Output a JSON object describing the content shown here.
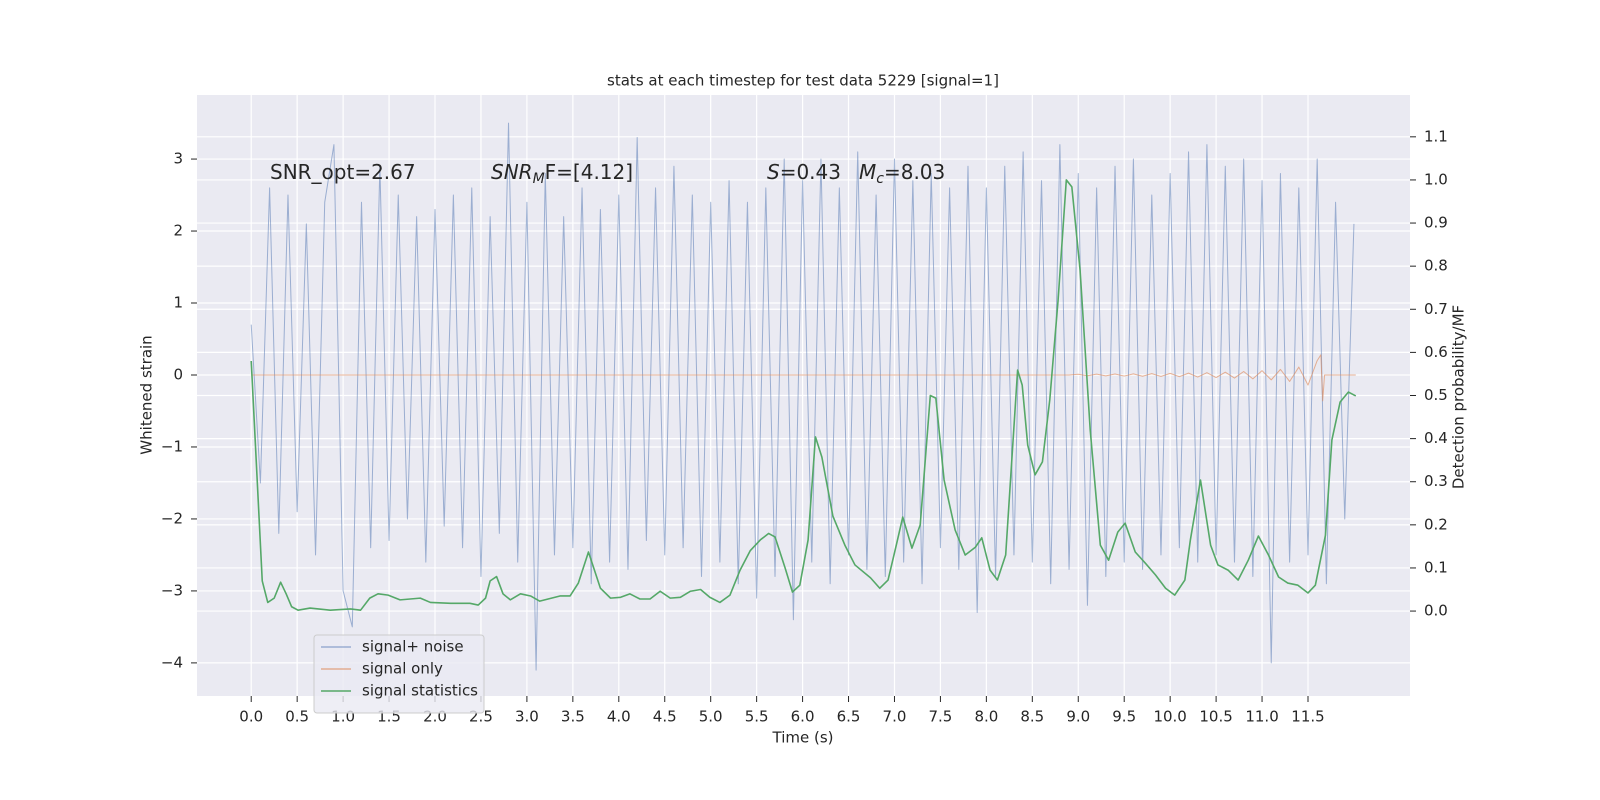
{
  "chart_data": {
    "type": "line",
    "title": "stats at each timestep for test data 5229 [signal=1]",
    "xlabel": "Time (s)",
    "ylabel": "Whitened strain",
    "y2label": "Detection probability/MF",
    "grid": true,
    "legend_position": "lower left",
    "xlim": [
      -0.59,
      12.61
    ],
    "ylim": [
      -4.46,
      3.89
    ],
    "y2lim": [
      -0.197,
      1.197
    ],
    "xticks": [
      {
        "value": 0,
        "label": "0.0"
      },
      0.5,
      {
        "value": 1,
        "label": "1.0"
      },
      1.5,
      {
        "value": 2,
        "label": "2.0"
      },
      2.5,
      {
        "value": 3,
        "label": "3.0"
      },
      3.5,
      {
        "value": 4,
        "label": "4.0"
      },
      4.5,
      {
        "value": 5,
        "label": "5.0"
      },
      5.5,
      {
        "value": 6,
        "label": "6.0"
      },
      6.5,
      {
        "value": 7,
        "label": "7.0"
      },
      7.5,
      {
        "value": 8,
        "label": "8.0"
      },
      8.5,
      {
        "value": 9,
        "label": "9.0"
      },
      9.5,
      {
        "value": 10,
        "label": "10.0"
      },
      10.5,
      {
        "value": 11,
        "label": "11.0"
      },
      11.5
    ],
    "yticks": [
      {
        "value": -4,
        "label": "−4"
      },
      {
        "value": -3,
        "label": "−3"
      },
      {
        "value": -2,
        "label": "−2"
      },
      {
        "value": -1,
        "label": "−1"
      },
      0,
      1,
      2,
      3
    ],
    "y2ticks": [
      {
        "value": 0,
        "label": "0.0"
      },
      0.1,
      0.2,
      0.3,
      0.4,
      0.5,
      0.6,
      0.7,
      0.8,
      0.9,
      {
        "value": 1,
        "label": "1.0"
      },
      1.1
    ],
    "annotations": [
      {
        "main": "SNR_opt=2.67"
      },
      {
        "main": "SNR",
        "sub": "M",
        "after": "F=[4.12]"
      },
      {
        "main": "S",
        "after": "=0.43"
      },
      {
        "main": "M",
        "sub": "c",
        "after": "=8.03"
      }
    ],
    "series": [
      {
        "name": "signal+ noise",
        "color": "#4c72b0",
        "axis": "y",
        "x": [
          0,
          0.1,
          0.2,
          0.3,
          0.4,
          0.5,
          0.6,
          0.7,
          0.8,
          0.9,
          1,
          1.1,
          1.2,
          1.3,
          1.4,
          1.5,
          1.6,
          1.7,
          1.8,
          1.9,
          2,
          2.1,
          2.2,
          2.3,
          2.4,
          2.5,
          2.6,
          2.7,
          2.8,
          2.9,
          3,
          3.1,
          3.2,
          3.3,
          3.4,
          3.5,
          3.6,
          3.7,
          3.8,
          3.9,
          4,
          4.1,
          4.2,
          4.3,
          4.4,
          4.5,
          4.6,
          4.7,
          4.8,
          4.9,
          5,
          5.1,
          5.2,
          5.3,
          5.4,
          5.5,
          5.6,
          5.7,
          5.8,
          5.9,
          6,
          6.1,
          6.2,
          6.3,
          6.4,
          6.5,
          6.6,
          6.7,
          6.8,
          6.9,
          7,
          7.1,
          7.2,
          7.3,
          7.4,
          7.5,
          7.6,
          7.7,
          7.8,
          7.9,
          8,
          8.1,
          8.2,
          8.3,
          8.4,
          8.5,
          8.6,
          8.7,
          8.8,
          8.9,
          9,
          9.1,
          9.2,
          9.3,
          9.4,
          9.5,
          9.6,
          9.7,
          9.8,
          9.9,
          10,
          10.1,
          10.2,
          10.3,
          10.4,
          10.5,
          10.6,
          10.7,
          10.8,
          10.9,
          11,
          11.1,
          11.2,
          11.3,
          11.4,
          11.5,
          11.6,
          11.7,
          11.8,
          11.9,
          12
        ],
        "values": [
          0.7,
          -1.5,
          2.6,
          -2.2,
          2.5,
          -1.9,
          2.1,
          -2.5,
          2.4,
          3.2,
          -3.0,
          -3.5,
          2.4,
          -2.4,
          2.9,
          -2.3,
          2.5,
          -2.0,
          2.2,
          -2.6,
          2.3,
          -2.1,
          2.5,
          -2.4,
          2.6,
          -2.8,
          2.2,
          -2.2,
          3.5,
          -2.6,
          2.4,
          -4.1,
          2.8,
          -2.5,
          2.2,
          -2.4,
          2.6,
          -2.9,
          2.3,
          -2.6,
          2.5,
          -2.7,
          3.3,
          -2.3,
          2.6,
          -2.5,
          2.9,
          -2.4,
          2.5,
          -2.8,
          2.4,
          -2.6,
          2.7,
          -2.9,
          2.4,
          -3.1,
          2.6,
          -2.8,
          3.0,
          -3.4,
          2.7,
          -2.6,
          3.0,
          -2.9,
          2.6,
          -2.5,
          3.1,
          -2.7,
          2.5,
          -2.8,
          3.0,
          -2.6,
          2.7,
          -2.9,
          2.8,
          -2.4,
          2.6,
          -2.7,
          2.9,
          -3.3,
          2.6,
          -2.8,
          2.9,
          -2.5,
          3.1,
          -2.6,
          2.7,
          -2.9,
          3.2,
          -2.7,
          2.8,
          -3.2,
          2.6,
          -2.8,
          2.9,
          -2.6,
          3.0,
          -2.7,
          2.5,
          -2.5,
          2.8,
          -2.4,
          3.1,
          -2.6,
          3.2,
          -2.5,
          2.9,
          -2.6,
          3.0,
          -2.8,
          2.7,
          -4.0,
          2.8,
          -2.6,
          2.6,
          -2.5,
          3.0,
          -2.9,
          2.4,
          -2.0,
          2.1
        ]
      },
      {
        "name": "signal only",
        "color": "#dd8452",
        "axis": "y",
        "x": [
          0,
          8.9,
          9,
          9.1,
          9.2,
          9.3,
          9.4,
          9.5,
          9.6,
          9.7,
          9.8,
          9.9,
          10,
          10.1,
          10.2,
          10.3,
          10.4,
          10.5,
          10.6,
          10.7,
          10.8,
          10.9,
          11,
          11.1,
          11.2,
          11.3,
          11.4,
          11.5,
          11.6,
          11.64,
          11.66,
          11.68,
          12.02
        ],
        "values": [
          0,
          0,
          0.01,
          -0.01,
          0.012,
          -0.012,
          0.014,
          -0.015,
          0.016,
          -0.017,
          0.019,
          -0.02,
          0.022,
          -0.024,
          0.026,
          -0.029,
          0.032,
          -0.035,
          0.039,
          -0.043,
          0.048,
          -0.054,
          0.06,
          -0.068,
          0.078,
          -0.09,
          0.11,
          -0.14,
          0.2,
          0.28,
          -0.36,
          0,
          0
        ]
      },
      {
        "name": "signal statistics",
        "color": "#55a868",
        "axis": "y2",
        "x": [
          0,
          0.12,
          0.18,
          0.25,
          0.32,
          0.38,
          0.44,
          0.51,
          0.64,
          0.86,
          1.08,
          1.19,
          1.29,
          1.38,
          1.49,
          1.62,
          1.84,
          1.95,
          2.17,
          2.38,
          2.47,
          2.55,
          2.6,
          2.67,
          2.74,
          2.82,
          2.93,
          3.04,
          3.14,
          3.36,
          3.47,
          3.56,
          3.67,
          3.8,
          3.91,
          4.02,
          4.12,
          4.23,
          4.34,
          4.45,
          4.56,
          4.67,
          4.78,
          4.89,
          4.99,
          5.1,
          5.21,
          5.32,
          5.43,
          5.54,
          5.63,
          5.7,
          5.81,
          5.89,
          5.97,
          6.06,
          6.14,
          6.21,
          6.33,
          6.46,
          6.57,
          6.74,
          6.84,
          6.93,
          7.02,
          7.09,
          7.19,
          7.28,
          7.39,
          7.45,
          7.54,
          7.66,
          7.77,
          7.88,
          7.95,
          8.04,
          8.12,
          8.21,
          8.34,
          8.39,
          8.45,
          8.53,
          8.61,
          8.69,
          8.78,
          8.87,
          8.93,
          9.02,
          9.13,
          9.24,
          9.33,
          9.43,
          9.51,
          9.62,
          9.73,
          9.84,
          9.95,
          10.05,
          10.16,
          10.22,
          10.33,
          10.44,
          10.52,
          10.63,
          10.74,
          10.85,
          10.96,
          11.07,
          11.18,
          11.28,
          11.39,
          11.5,
          11.58,
          11.69,
          11.76,
          11.85,
          11.94,
          12.02
        ],
        "values": [
          0.58,
          0.07,
          0.02,
          0.03,
          0.067,
          0.04,
          0.01,
          0.002,
          0.007,
          0.002,
          0.005,
          0.002,
          0.03,
          0.04,
          0.037,
          0.026,
          0.03,
          0.02,
          0.018,
          0.018,
          0.014,
          0.03,
          0.07,
          0.08,
          0.04,
          0.026,
          0.04,
          0.035,
          0.023,
          0.035,
          0.035,
          0.065,
          0.137,
          0.053,
          0.03,
          0.032,
          0.04,
          0.028,
          0.028,
          0.046,
          0.03,
          0.032,
          0.046,
          0.05,
          0.032,
          0.02,
          0.037,
          0.095,
          0.14,
          0.165,
          0.18,
          0.172,
          0.1,
          0.044,
          0.06,
          0.165,
          0.404,
          0.357,
          0.22,
          0.153,
          0.107,
          0.077,
          0.053,
          0.072,
          0.153,
          0.218,
          0.146,
          0.2,
          0.5,
          0.494,
          0.304,
          0.188,
          0.13,
          0.148,
          0.17,
          0.095,
          0.072,
          0.13,
          0.559,
          0.524,
          0.385,
          0.316,
          0.346,
          0.49,
          0.72,
          1.0,
          0.984,
          0.79,
          0.42,
          0.153,
          0.118,
          0.183,
          0.204,
          0.137,
          0.111,
          0.084,
          0.053,
          0.037,
          0.072,
          0.165,
          0.304,
          0.153,
          0.107,
          0.095,
          0.072,
          0.118,
          0.174,
          0.13,
          0.079,
          0.065,
          0.06,
          0.042,
          0.06,
          0.176,
          0.397,
          0.485,
          0.508,
          0.499
        ]
      }
    ]
  }
}
